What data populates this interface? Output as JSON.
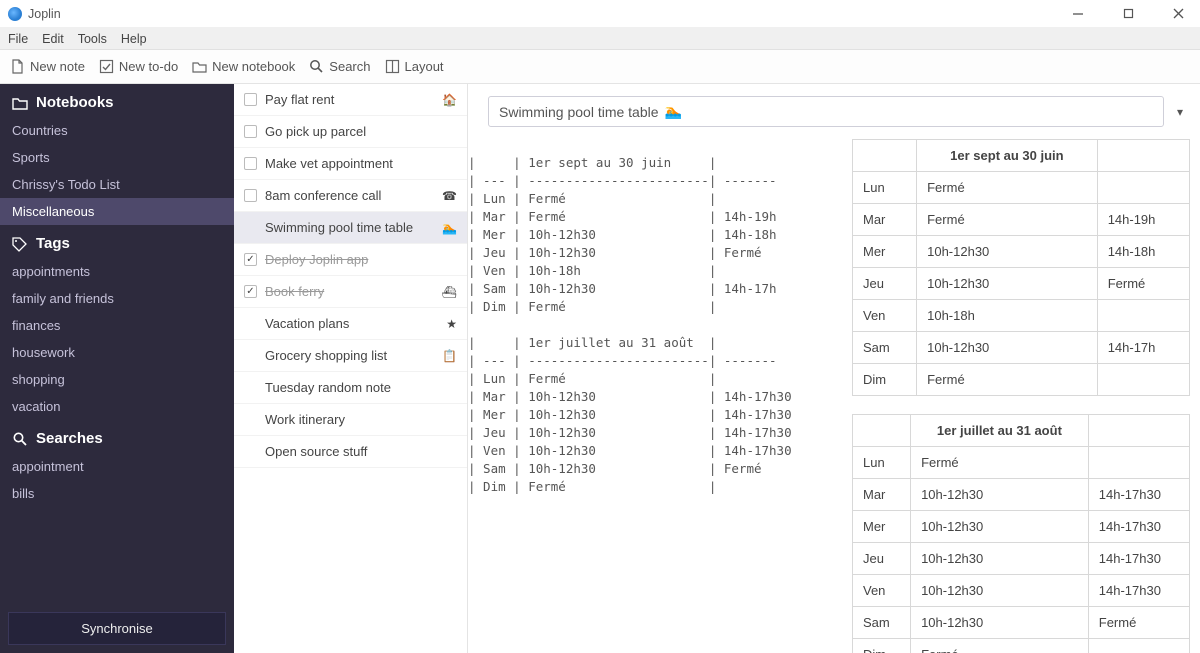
{
  "app": {
    "title": "Joplin"
  },
  "menus": [
    "File",
    "Edit",
    "Tools",
    "Help"
  ],
  "toolbar": {
    "new_note": "New note",
    "new_todo": "New to-do",
    "new_notebook": "New notebook",
    "search": "Search",
    "layout": "Layout"
  },
  "sidebar": {
    "section_notebooks": "Notebooks",
    "notebooks": [
      {
        "label": "Countries",
        "selected": false
      },
      {
        "label": "Sports",
        "selected": false
      },
      {
        "label": "Chrissy's Todo List",
        "selected": false
      },
      {
        "label": "Miscellaneous",
        "selected": true
      }
    ],
    "section_tags": "Tags",
    "tags": [
      "appointments",
      "family and friends",
      "finances",
      "housework",
      "shopping",
      "vacation"
    ],
    "section_searches": "Searches",
    "searches": [
      "appointment",
      "bills"
    ],
    "sync_label": "Synchronise"
  },
  "notelist": [
    {
      "kind": "todo",
      "title": "Pay flat rent",
      "emoji": "🏠",
      "done": false
    },
    {
      "kind": "todo",
      "title": "Go pick up parcel",
      "emoji": "",
      "done": false
    },
    {
      "kind": "todo",
      "title": "Make vet appointment",
      "emoji": "",
      "done": false
    },
    {
      "kind": "todo",
      "title": "8am conference call",
      "emoji": "☎",
      "done": false
    },
    {
      "kind": "note",
      "title": "Swimming pool time table",
      "emoji": "🏊",
      "selected": true
    },
    {
      "kind": "todo",
      "title": "Deploy Joplin app",
      "emoji": "",
      "done": true
    },
    {
      "kind": "todo",
      "title": "Book ferry",
      "emoji": "⛴",
      "done": true
    },
    {
      "kind": "note",
      "title": "Vacation plans",
      "emoji": "★"
    },
    {
      "kind": "note",
      "title": "Grocery shopping list",
      "emoji": "📋"
    },
    {
      "kind": "note",
      "title": "Tuesday random note",
      "emoji": ""
    },
    {
      "kind": "note",
      "title": "Work itinerary",
      "emoji": ""
    },
    {
      "kind": "note",
      "title": "Open source stuff",
      "emoji": ""
    }
  ],
  "note": {
    "title": "Swimming pool time table",
    "title_emoji": "🏊",
    "schedules": [
      {
        "caption": "1er sept au 30 juin",
        "columns": [
          "",
          "",
          ""
        ],
        "rows": [
          [
            "Lun",
            "Fermé",
            ""
          ],
          [
            "Mar",
            "Fermé",
            "14h-19h"
          ],
          [
            "Mer",
            "10h-12h30",
            "14h-18h"
          ],
          [
            "Jeu",
            "10h-12h30",
            "Fermé"
          ],
          [
            "Ven",
            "10h-18h",
            ""
          ],
          [
            "Sam",
            "10h-12h30",
            "14h-17h"
          ],
          [
            "Dim",
            "Fermé",
            ""
          ]
        ]
      },
      {
        "caption": "1er juillet au 31 août",
        "columns": [
          "",
          "",
          ""
        ],
        "rows": [
          [
            "Lun",
            "Fermé",
            ""
          ],
          [
            "Mar",
            "10h-12h30",
            "14h-17h30"
          ],
          [
            "Mer",
            "10h-12h30",
            "14h-17h30"
          ],
          [
            "Jeu",
            "10h-12h30",
            "14h-17h30"
          ],
          [
            "Ven",
            "10h-12h30",
            "14h-17h30"
          ],
          [
            "Sam",
            "10h-12h30",
            "Fermé"
          ],
          [
            "Dim",
            "Fermé",
            ""
          ]
        ]
      }
    ]
  },
  "colors": {
    "sidebar_bg": "#2d2a3d",
    "sidebar_sel": "#4e496b",
    "border": "#e4e4e4",
    "title_border": "#cfcfd9"
  }
}
